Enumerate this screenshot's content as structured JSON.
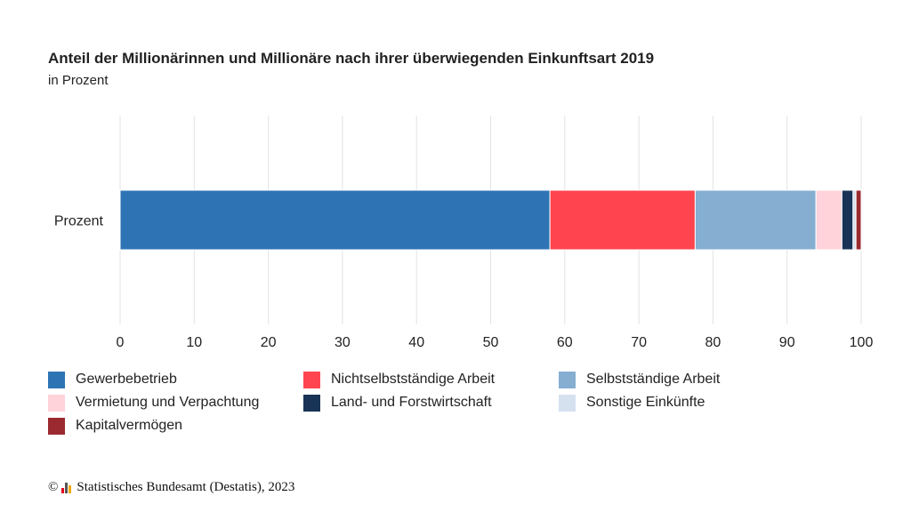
{
  "header": {
    "title": "Anteil der Millionärinnen und Millionäre nach ihrer überwiegenden Einkunftsart 2019",
    "subtitle": "in Prozent"
  },
  "chart_data": {
    "type": "bar",
    "orientation": "horizontal",
    "stacked": true,
    "categories": [
      "Prozent"
    ],
    "series": [
      {
        "name": "Gewerbebetrieb",
        "values": [
          58.0
        ],
        "color": "#2e74b5"
      },
      {
        "name": "Nichtselbstständige Arbeit",
        "values": [
          19.6
        ],
        "color": "#ff444f"
      },
      {
        "name": "Selbstständige Arbeit",
        "values": [
          16.3
        ],
        "color": "#85aed1"
      },
      {
        "name": "Vermietung und Verpachtung",
        "values": [
          3.5
        ],
        "color": "#ffd3d9"
      },
      {
        "name": "Land- und Forstwirtschaft",
        "values": [
          1.5
        ],
        "color": "#183356"
      },
      {
        "name": "Sonstige Einkünfte",
        "values": [
          0.4
        ],
        "color": "#d6e1f0"
      },
      {
        "name": "Kapitalvermögen",
        "values": [
          0.7
        ],
        "color": "#9a2a30"
      }
    ],
    "xlim": [
      0,
      100
    ],
    "xticks": [
      0,
      10,
      20,
      30,
      40,
      50,
      60,
      70,
      80,
      90,
      100
    ],
    "xlabel": "",
    "ylabel": "",
    "grid": "vertical",
    "legend_position": "bottom"
  },
  "footer": {
    "copyright": "©",
    "source": "Statistisches Bundesamt (Destatis), 2023"
  }
}
